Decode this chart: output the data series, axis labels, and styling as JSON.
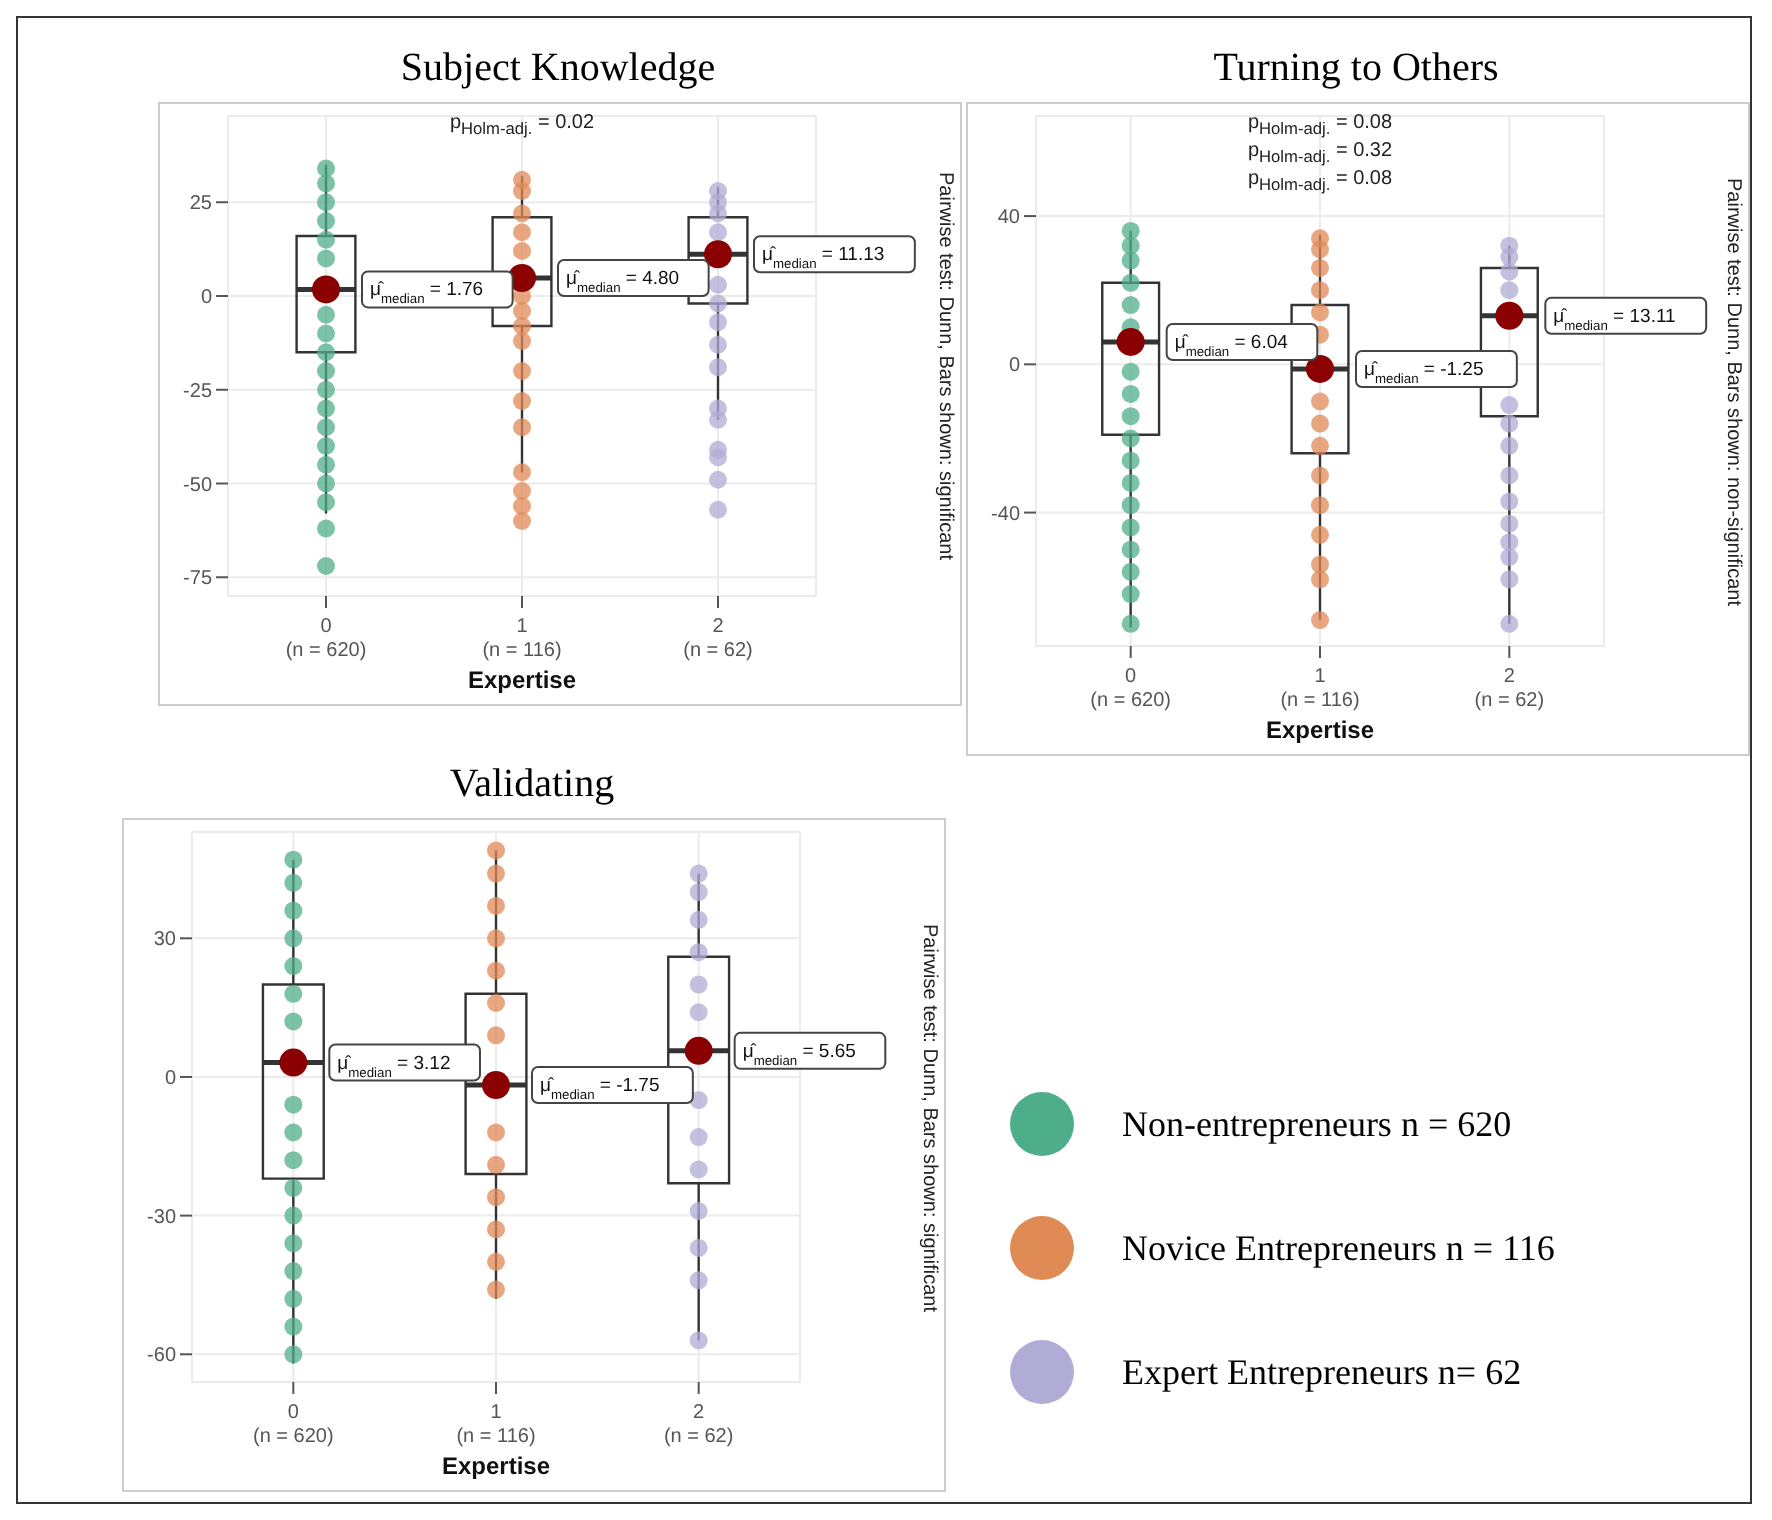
{
  "chart_data": [
    {
      "type": "box",
      "title": "Subject Knowledge",
      "xlabel": "Expertise",
      "categories": [
        "0\n(n = 620)",
        "1\n(n = 116)",
        "2\n(n = 62)"
      ],
      "ylim": [
        -80,
        48
      ],
      "yticks": [
        -75,
        -50,
        -25,
        0,
        25
      ],
      "grid": true,
      "marker": "circle",
      "series": [
        {
          "type": "scatter",
          "color": "#4fae8a",
          "x": [
            "0\n(n = 620)",
            "0\n(n = 620)",
            "0\n(n = 620)",
            "0\n(n = 620)",
            "0\n(n = 620)",
            "0\n(n = 620)",
            "0\n(n = 620)",
            "0\n(n = 620)",
            "0\n(n = 620)",
            "0\n(n = 620)",
            "0\n(n = 620)",
            "0\n(n = 620)",
            "0\n(n = 620)",
            "0\n(n = 620)",
            "0\n(n = 620)",
            "0\n(n = 620)",
            "0\n(n = 620)",
            "0\n(n = 620)",
            "0\n(n = 620)"
          ],
          "values": [
            34,
            30,
            25,
            20,
            15,
            10,
            -5,
            -10,
            -15,
            -20,
            -25,
            -30,
            -35,
            -40,
            -45,
            -50,
            -55,
            -62,
            -72
          ]
        },
        {
          "type": "scatter",
          "color": "#e08a56",
          "x": [
            "1\n(n = 116)",
            "1\n(n = 116)",
            "1\n(n = 116)",
            "1\n(n = 116)",
            "1\n(n = 116)",
            "1\n(n = 116)",
            "1\n(n = 116)",
            "1\n(n = 116)",
            "1\n(n = 116)",
            "1\n(n = 116)",
            "1\n(n = 116)",
            "1\n(n = 116)",
            "1\n(n = 116)",
            "1\n(n = 116)",
            "1\n(n = 116)",
            "1\n(n = 116)"
          ],
          "values": [
            31,
            28,
            22,
            17,
            12,
            0,
            -4,
            -8,
            -12,
            -20,
            -28,
            -35,
            -47,
            -52,
            -56,
            -60
          ]
        },
        {
          "type": "scatter",
          "color": "#b0acd6",
          "x": [
            "2\n(n = 62)",
            "2\n(n = 62)",
            "2\n(n = 62)",
            "2\n(n = 62)",
            "2\n(n = 62)",
            "2\n(n = 62)",
            "2\n(n = 62)",
            "2\n(n = 62)",
            "2\n(n = 62)",
            "2\n(n = 62)",
            "2\n(n = 62)",
            "2\n(n = 62)",
            "2\n(n = 62)",
            "2\n(n = 62)",
            "2\n(n = 62)"
          ],
          "values": [
            28,
            25,
            22,
            17,
            3,
            -2,
            -7,
            -13,
            -19,
            -30,
            -33,
            -41,
            -43,
            -49,
            -57
          ]
        },
        {
          "type": "box",
          "color": "#333333",
          "boxes": [
            {
              "low": -58,
              "q1": -15,
              "median": 1.76,
              "q3": 16,
              "high": 35
            },
            {
              "low": -47,
              "q1": -8,
              "median": 4.8,
              "q3": 21,
              "high": 32
            },
            {
              "low": -33,
              "q1": -2,
              "median": 11.13,
              "q3": 21,
              "high": 29
            }
          ]
        },
        {
          "type": "scatter",
          "color": "#8b0000",
          "x": [
            "0\n(n = 620)",
            "1\n(n = 116)",
            "2\n(n = 62)"
          ],
          "values": [
            1.76,
            4.8,
            11.13
          ]
        }
      ],
      "annotations": [
        {
          "text": "μ̂$_{median}$ = 1.76",
          "x": "0\n(n = 620)",
          "y": 1.76
        },
        {
          "text": "μ̂$_{median}$ = 4.80",
          "x": "1\n(n = 116)",
          "y": 4.8
        },
        {
          "text": "μ̂$_{median}$ = 11.13",
          "x": "2\n(n = 62)",
          "y": 11.13
        },
        "p$_{Holm-adj.}$ = 0.02",
        "Pairwise test: Dunn, Bars shown: significant"
      ]
    },
    {
      "type": "box",
      "title": "Turning to Others",
      "xlabel": "Expertise",
      "categories": [
        "0\n(n = 620)",
        "1\n(n = 116)",
        "2\n(n = 62)"
      ],
      "ylim": [
        -76,
        67
      ],
      "yticks": [
        -40,
        0,
        40
      ],
      "grid": true,
      "marker": "circle",
      "series": [
        {
          "type": "scatter",
          "color": "#4fae8a",
          "x": [
            "0\n(n = 620)",
            "0\n(n = 620)",
            "0\n(n = 620)",
            "0\n(n = 620)",
            "0\n(n = 620)",
            "0\n(n = 620)",
            "0\n(n = 620)",
            "0\n(n = 620)",
            "0\n(n = 620)",
            "0\n(n = 620)",
            "0\n(n = 620)",
            "0\n(n = 620)",
            "0\n(n = 620)",
            "0\n(n = 620)",
            "0\n(n = 620)",
            "0\n(n = 620)",
            "0\n(n = 620)",
            "0\n(n = 620)"
          ],
          "values": [
            36,
            32,
            28,
            22,
            16,
            10,
            -2,
            -8,
            -14,
            -20,
            -26,
            -32,
            -38,
            -44,
            -50,
            -56,
            -62,
            -70
          ]
        },
        {
          "type": "scatter",
          "color": "#e08a56",
          "x": [
            "1\n(n = 116)",
            "1\n(n = 116)",
            "1\n(n = 116)",
            "1\n(n = 116)",
            "1\n(n = 116)",
            "1\n(n = 116)",
            "1\n(n = 116)",
            "1\n(n = 116)",
            "1\n(n = 116)",
            "1\n(n = 116)",
            "1\n(n = 116)",
            "1\n(n = 116)",
            "1\n(n = 116)",
            "1\n(n = 116)",
            "1\n(n = 116)"
          ],
          "values": [
            34,
            31,
            26,
            20,
            14,
            8,
            -10,
            -16,
            -22,
            -30,
            -38,
            -46,
            -54,
            -58,
            -69
          ]
        },
        {
          "type": "scatter",
          "color": "#b0acd6",
          "x": [
            "2\n(n = 62)",
            "2\n(n = 62)",
            "2\n(n = 62)",
            "2\n(n = 62)",
            "2\n(n = 62)",
            "2\n(n = 62)",
            "2\n(n = 62)",
            "2\n(n = 62)",
            "2\n(n = 62)",
            "2\n(n = 62)",
            "2\n(n = 62)",
            "2\n(n = 62)",
            "2\n(n = 62)",
            "2\n(n = 62)"
          ],
          "values": [
            32,
            29,
            25,
            20,
            -11,
            -16,
            -22,
            -30,
            -37,
            -43,
            -48,
            -52,
            -58,
            -70
          ]
        },
        {
          "type": "box",
          "color": "#333333",
          "boxes": [
            {
              "low": -71,
              "q1": -19,
              "median": 6.04,
              "q3": 22,
              "high": 36
            },
            {
              "low": -69,
              "q1": -24,
              "median": -1.25,
              "q3": 16,
              "high": 35
            },
            {
              "low": -70,
              "q1": -14,
              "median": 13.11,
              "q3": 26,
              "high": 32
            }
          ]
        },
        {
          "type": "scatter",
          "color": "#8b0000",
          "x": [
            "0\n(n = 620)",
            "1\n(n = 116)",
            "2\n(n = 62)"
          ],
          "values": [
            6.04,
            -1.25,
            13.11
          ]
        }
      ],
      "annotations": [
        {
          "text": "μ̂$_{median}$ = 6.04",
          "x": "0\n(n = 620)",
          "y": 6.04
        },
        {
          "text": "μ̂$_{median}$ = -1.25",
          "x": "1\n(n = 116)",
          "y": -1.25
        },
        {
          "text": "μ̂$_{median}$ = 13.11",
          "x": "2\n(n = 62)",
          "y": 13.11
        },
        "p$_{Holm-adj.}$ = 0.08",
        "p$_{Holm-adj.}$ = 0.32",
        "p$_{Holm-adj.}$ = 0.08",
        "Pairwise test: Dunn, Bars shown: non-significant"
      ]
    },
    {
      "type": "box",
      "title": "Validating",
      "xlabel": "Expertise",
      "categories": [
        "0\n(n = 620)",
        "1\n(n = 116)",
        "2\n(n = 62)"
      ],
      "ylim": [
        -66,
        53
      ],
      "yticks": [
        -60,
        -30,
        0,
        30
      ],
      "grid": true,
      "marker": "circle",
      "legend": "right",
      "series": [
        {
          "type": "scatter",
          "name": "Non-entrepreneurs n = 620",
          "color": "#4fae8a",
          "x": [
            "0\n(n = 620)",
            "0\n(n = 620)",
            "0\n(n = 620)",
            "0\n(n = 620)",
            "0\n(n = 620)",
            "0\n(n = 620)",
            "0\n(n = 620)",
            "0\n(n = 620)",
            "0\n(n = 620)",
            "0\n(n = 620)",
            "0\n(n = 620)",
            "0\n(n = 620)",
            "0\n(n = 620)",
            "0\n(n = 620)",
            "0\n(n = 620)",
            "0\n(n = 620)",
            "0\n(n = 620)"
          ],
          "values": [
            47,
            42,
            36,
            30,
            24,
            18,
            12,
            -6,
            -12,
            -18,
            -24,
            -30,
            -36,
            -42,
            -48,
            -54,
            -60
          ]
        },
        {
          "type": "scatter",
          "name": "Novice Entrepreneurs n = 116",
          "color": "#e08a56",
          "x": [
            "1\n(n = 116)",
            "1\n(n = 116)",
            "1\n(n = 116)",
            "1\n(n = 116)",
            "1\n(n = 116)",
            "1\n(n = 116)",
            "1\n(n = 116)",
            "1\n(n = 116)",
            "1\n(n = 116)",
            "1\n(n = 116)",
            "1\n(n = 116)",
            "1\n(n = 116)",
            "1\n(n = 116)"
          ],
          "values": [
            49,
            44,
            37,
            30,
            23,
            16,
            9,
            -12,
            -19,
            -26,
            -33,
            -40,
            -46
          ]
        },
        {
          "type": "scatter",
          "name": "Expert Entrepreneurs n= 62",
          "color": "#b0acd6",
          "x": [
            "2\n(n = 62)",
            "2\n(n = 62)",
            "2\n(n = 62)",
            "2\n(n = 62)",
            "2\n(n = 62)",
            "2\n(n = 62)",
            "2\n(n = 62)",
            "2\n(n = 62)",
            "2\n(n = 62)",
            "2\n(n = 62)",
            "2\n(n = 62)",
            "2\n(n = 62)",
            "2\n(n = 62)"
          ],
          "values": [
            44,
            40,
            34,
            27,
            20,
            14,
            -5,
            -13,
            -20,
            -29,
            -37,
            -44,
            -57
          ]
        },
        {
          "type": "box",
          "color": "#333333",
          "boxes": [
            {
              "low": -62,
              "q1": -22,
              "median": 3.12,
              "q3": 20,
              "high": 47
            },
            {
              "low": -48,
              "q1": -21,
              "median": -1.75,
              "q3": 18,
              "high": 49
            },
            {
              "low": -57,
              "q1": -23,
              "median": 5.65,
              "q3": 26,
              "high": 44
            }
          ]
        },
        {
          "type": "scatter",
          "color": "#8b0000",
          "x": [
            "0\n(n = 620)",
            "1\n(n = 116)",
            "2\n(n = 62)"
          ],
          "values": [
            3.12,
            -1.75,
            5.65
          ]
        }
      ],
      "annotations": [
        {
          "text": "μ̂$_{median}$ = 3.12",
          "x": "0\n(n = 620)",
          "y": 3.12
        },
        {
          "text": "μ̂$_{median}$ = -1.75",
          "x": "1\n(n = 116)",
          "y": -1.75
        },
        {
          "text": "μ̂$_{median}$ = 5.65",
          "x": "2\n(n = 62)",
          "y": 5.65
        },
        "Pairwise test: Dunn, Bars shown: significant"
      ]
    }
  ]
}
